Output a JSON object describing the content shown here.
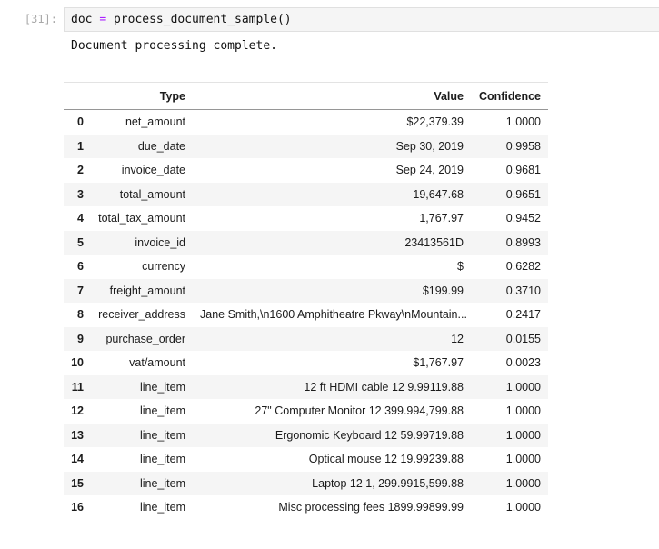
{
  "notebook": {
    "cell": {
      "execution_count_label": "[31]:",
      "code": {
        "lhs": "doc ",
        "operator": "=",
        "rhs": " process_document_sample()"
      }
    },
    "output": {
      "stream_text": "Document processing complete."
    }
  },
  "table": {
    "headers": {
      "index": "",
      "type": "Type",
      "value": "Value",
      "confidence": "Confidence"
    },
    "rows": [
      {
        "index": "0",
        "type": "net_amount",
        "value": "$22,379.39",
        "confidence": "1.0000"
      },
      {
        "index": "1",
        "type": "due_date",
        "value": "Sep 30, 2019",
        "confidence": "0.9958"
      },
      {
        "index": "2",
        "type": "invoice_date",
        "value": "Sep 24, 2019",
        "confidence": "0.9681"
      },
      {
        "index": "3",
        "type": "total_amount",
        "value": "19,647.68",
        "confidence": "0.9651"
      },
      {
        "index": "4",
        "type": "total_tax_amount",
        "value": "1,767.97",
        "confidence": "0.9452"
      },
      {
        "index": "5",
        "type": "invoice_id",
        "value": "23413561D",
        "confidence": "0.8993"
      },
      {
        "index": "6",
        "type": "currency",
        "value": "$",
        "confidence": "0.6282"
      },
      {
        "index": "7",
        "type": "freight_amount",
        "value": "$199.99",
        "confidence": "0.3710"
      },
      {
        "index": "8",
        "type": "receiver_address",
        "value": "Jane Smith,\\n1600 Amphitheatre Pkway\\nMountain...",
        "confidence": "0.2417"
      },
      {
        "index": "9",
        "type": "purchase_order",
        "value": "12",
        "confidence": "0.0155"
      },
      {
        "index": "10",
        "type": "vat/amount",
        "value": "$1,767.97",
        "confidence": "0.0023"
      },
      {
        "index": "11",
        "type": "line_item",
        "value": "12 ft HDMI cable 12 9.99119.88",
        "confidence": "1.0000"
      },
      {
        "index": "12",
        "type": "line_item",
        "value": "27\" Computer Monitor 12 399.994,799.88",
        "confidence": "1.0000"
      },
      {
        "index": "13",
        "type": "line_item",
        "value": "Ergonomic Keyboard 12 59.99719.88",
        "confidence": "1.0000"
      },
      {
        "index": "14",
        "type": "line_item",
        "value": "Optical mouse 12 19.99239.88",
        "confidence": "1.0000"
      },
      {
        "index": "15",
        "type": "line_item",
        "value": "Laptop 12 1, 299.9915,599.88",
        "confidence": "1.0000"
      },
      {
        "index": "16",
        "type": "line_item",
        "value": "Misc processing fees 1899.99899.99",
        "confidence": "1.0000"
      }
    ]
  },
  "colors": {
    "operator_accent": "#aa22ff",
    "cell_background": "#f5f5f5",
    "cell_border": "#e0e0e0",
    "row_stripe": "#f5f5f5",
    "header_border": "#969696",
    "prompt_text": "#a9a9a9"
  }
}
